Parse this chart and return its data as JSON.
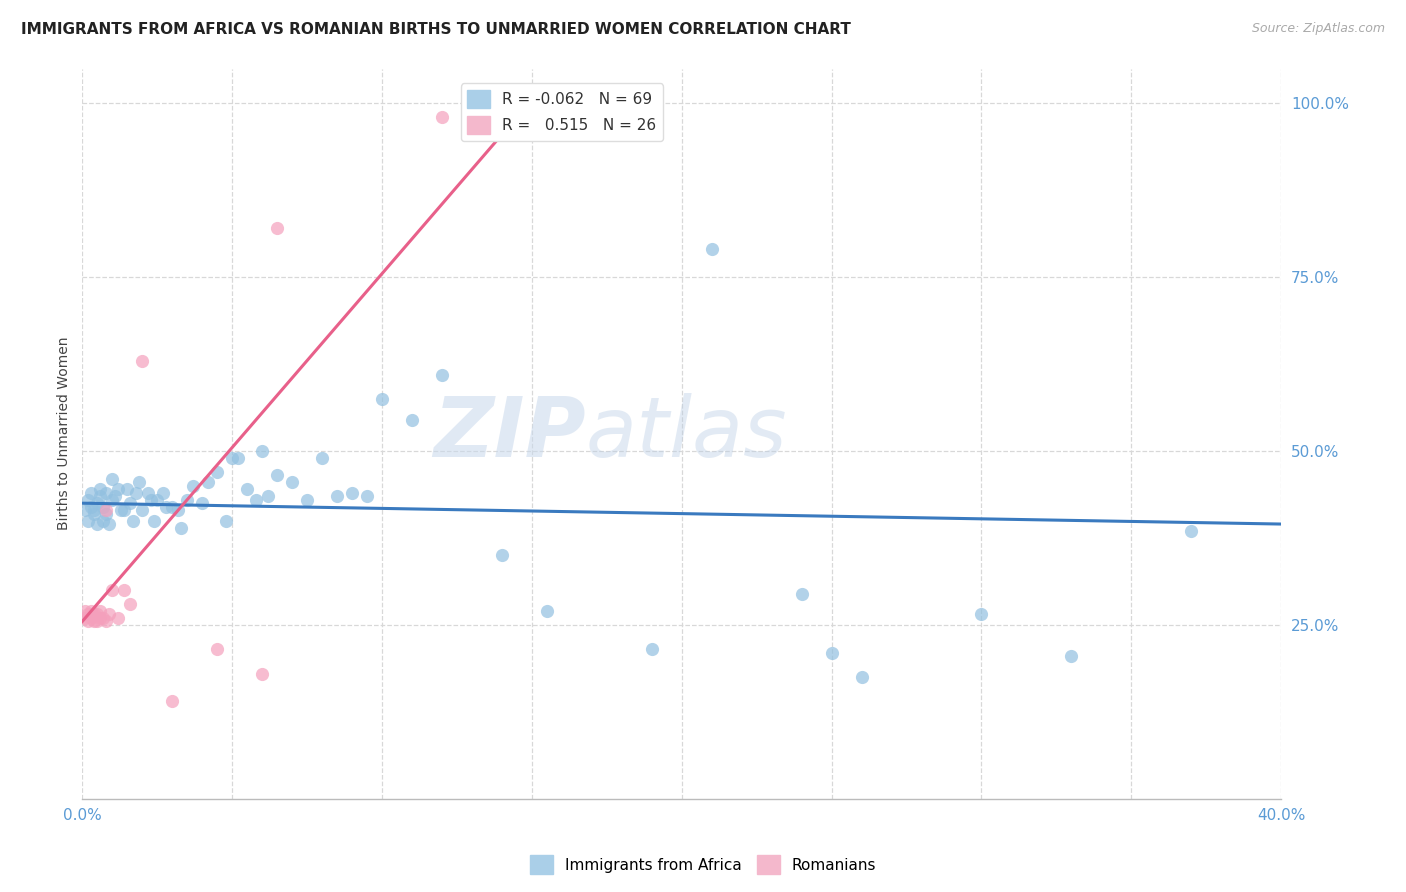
{
  "title": "IMMIGRANTS FROM AFRICA VS ROMANIAN BIRTHS TO UNMARRIED WOMEN CORRELATION CHART",
  "source": "Source: ZipAtlas.com",
  "ylabel": "Births to Unmarried Women",
  "xlim": [
    0.0,
    0.4
  ],
  "ylim": [
    0.0,
    1.05
  ],
  "yticks": [
    0.25,
    0.5,
    0.75,
    1.0
  ],
  "ytick_labels": [
    "25.0%",
    "50.0%",
    "75.0%",
    "100.0%"
  ],
  "xticks": [
    0.0,
    0.05,
    0.1,
    0.15,
    0.2,
    0.25,
    0.3,
    0.35,
    0.4
  ],
  "xtick_labels": [
    "0.0%",
    "",
    "",
    "",
    "",
    "",
    "",
    "",
    "40.0%"
  ],
  "legend_line1": "R = -0.062   N = 69",
  "legend_line2": "R =   0.515   N = 26",
  "blue_scatter_x": [
    0.001,
    0.002,
    0.002,
    0.003,
    0.003,
    0.004,
    0.004,
    0.005,
    0.005,
    0.006,
    0.006,
    0.007,
    0.007,
    0.008,
    0.008,
    0.009,
    0.01,
    0.01,
    0.011,
    0.012,
    0.013,
    0.014,
    0.015,
    0.016,
    0.017,
    0.018,
    0.019,
    0.02,
    0.022,
    0.023,
    0.024,
    0.025,
    0.027,
    0.028,
    0.03,
    0.032,
    0.033,
    0.035,
    0.037,
    0.04,
    0.042,
    0.045,
    0.048,
    0.05,
    0.052,
    0.055,
    0.058,
    0.06,
    0.062,
    0.065,
    0.07,
    0.075,
    0.08,
    0.085,
    0.09,
    0.095,
    0.1,
    0.11,
    0.12,
    0.14,
    0.155,
    0.19,
    0.21,
    0.24,
    0.25,
    0.26,
    0.3,
    0.33,
    0.37
  ],
  "blue_scatter_y": [
    0.415,
    0.4,
    0.43,
    0.42,
    0.44,
    0.415,
    0.41,
    0.425,
    0.395,
    0.435,
    0.445,
    0.4,
    0.42,
    0.41,
    0.44,
    0.395,
    0.43,
    0.46,
    0.435,
    0.445,
    0.415,
    0.415,
    0.445,
    0.425,
    0.4,
    0.44,
    0.455,
    0.415,
    0.44,
    0.43,
    0.4,
    0.43,
    0.44,
    0.42,
    0.42,
    0.415,
    0.39,
    0.43,
    0.45,
    0.425,
    0.455,
    0.47,
    0.4,
    0.49,
    0.49,
    0.445,
    0.43,
    0.5,
    0.435,
    0.465,
    0.455,
    0.43,
    0.49,
    0.435,
    0.44,
    0.435,
    0.575,
    0.545,
    0.61,
    0.35,
    0.27,
    0.215,
    0.79,
    0.295,
    0.21,
    0.175,
    0.265,
    0.205,
    0.385
  ],
  "pink_scatter_x": [
    0.001,
    0.001,
    0.002,
    0.002,
    0.003,
    0.003,
    0.004,
    0.004,
    0.005,
    0.005,
    0.006,
    0.006,
    0.007,
    0.008,
    0.008,
    0.009,
    0.01,
    0.012,
    0.014,
    0.016,
    0.02,
    0.03,
    0.045,
    0.06,
    0.065,
    0.12
  ],
  "pink_scatter_y": [
    0.27,
    0.26,
    0.265,
    0.255,
    0.27,
    0.26,
    0.255,
    0.265,
    0.265,
    0.255,
    0.26,
    0.27,
    0.26,
    0.415,
    0.255,
    0.265,
    0.3,
    0.26,
    0.3,
    0.28,
    0.63,
    0.14,
    0.215,
    0.18,
    0.82,
    0.98
  ],
  "blue_line_x": [
    0.0,
    0.4
  ],
  "blue_line_y": [
    0.425,
    0.395
  ],
  "pink_line_x": [
    0.0,
    0.145
  ],
  "pink_line_y": [
    0.255,
    0.98
  ],
  "blue_dot_color": "#92c0e0",
  "pink_dot_color": "#f4a0bc",
  "blue_line_color": "#3a7abf",
  "pink_line_color": "#e8608a",
  "legend_blue_color": "#aacfe8",
  "legend_pink_color": "#f4b8cc",
  "watermark_zip": "ZIP",
  "watermark_atlas": "atlas",
  "background_color": "#ffffff",
  "grid_color": "#d8d8d8",
  "axis_label_color": "#5b9bd5",
  "title_color": "#222222"
}
